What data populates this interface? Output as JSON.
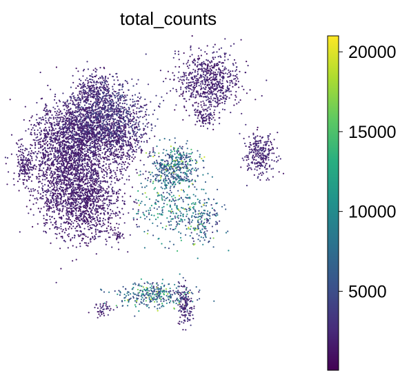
{
  "chart_data": {
    "type": "scatter",
    "title": "total_counts",
    "xlabel": "",
    "ylabel": "",
    "colorbar": {
      "colormap": "viridis",
      "range": [
        50,
        21000
      ],
      "ticks": [
        5000,
        10000,
        15000,
        20000
      ],
      "tick_labels": [
        "5000",
        "10000",
        "15000",
        "20000"
      ]
    },
    "axes_visible": false,
    "grid": false,
    "clusters": [
      {
        "id": "c1",
        "x": -4.6,
        "y": 3.6,
        "sx": 1.2,
        "sy": 0.9,
        "n": 1200,
        "mean_counts": 2200
      },
      {
        "id": "c2",
        "x": -5.4,
        "y": 1.8,
        "sx": 1.2,
        "sy": 1.4,
        "n": 1400,
        "mean_counts": 2000
      },
      {
        "id": "c3",
        "x": -4.6,
        "y": -0.4,
        "sx": 1.1,
        "sy": 1.1,
        "n": 1100,
        "mean_counts": 1800
      },
      {
        "id": "c4",
        "x": -3.9,
        "y": 5.9,
        "sx": 0.6,
        "sy": 0.5,
        "n": 280,
        "mean_counts": 2400
      },
      {
        "id": "c5",
        "x": -3.0,
        "y": 4.4,
        "sx": 1.0,
        "sy": 0.8,
        "n": 650,
        "mean_counts": 3200
      },
      {
        "id": "c6",
        "x": -2.4,
        "y": 2.7,
        "sx": 0.6,
        "sy": 0.8,
        "n": 260,
        "mean_counts": 2200
      },
      {
        "id": "c7",
        "x": -7.9,
        "y": 1.6,
        "sx": 0.25,
        "sy": 0.5,
        "n": 120,
        "mean_counts": 1800
      },
      {
        "id": "c8",
        "x": -2.6,
        "y": -2.3,
        "sx": 0.15,
        "sy": 0.15,
        "n": 25,
        "mean_counts": 1600
      },
      {
        "id": "c9",
        "x": 2.4,
        "y": 6.3,
        "sx": 0.9,
        "sy": 0.8,
        "n": 700,
        "mean_counts": 2100
      },
      {
        "id": "c10",
        "x": 2.2,
        "y": 4.3,
        "sx": 0.3,
        "sy": 0.3,
        "n": 90,
        "mean_counts": 2000
      },
      {
        "id": "c11",
        "x": 5.3,
        "y": 2.2,
        "sx": 0.4,
        "sy": 0.6,
        "n": 260,
        "mean_counts": 2200
      },
      {
        "id": "c12",
        "x": 0.4,
        "y": 1.5,
        "sx": 0.7,
        "sy": 0.6,
        "n": 450,
        "mean_counts": 6500
      },
      {
        "id": "c13",
        "x": 0.3,
        "y": -0.8,
        "sx": 0.9,
        "sy": 0.9,
        "n": 260,
        "mean_counts": 8000
      },
      {
        "id": "c14",
        "x": 2.1,
        "y": -1.4,
        "sx": 0.5,
        "sy": 0.8,
        "n": 160,
        "mean_counts": 6500
      },
      {
        "id": "c15",
        "x": -0.6,
        "y": -5.6,
        "sx": 1.0,
        "sy": 0.35,
        "n": 320,
        "mean_counts": 7000
      },
      {
        "id": "c16",
        "x": 1.1,
        "y": -6.2,
        "sx": 0.2,
        "sy": 0.6,
        "n": 140,
        "mean_counts": 2600
      },
      {
        "id": "c17",
        "x": -3.5,
        "y": -6.4,
        "sx": 0.25,
        "sy": 0.2,
        "n": 40,
        "mean_counts": 2200
      }
    ]
  }
}
